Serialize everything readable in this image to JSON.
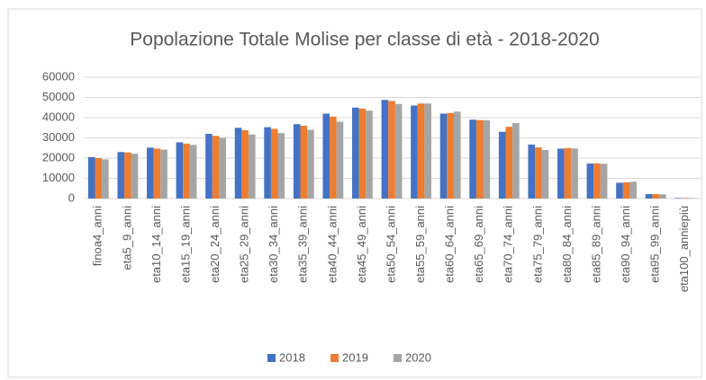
{
  "chart_data": {
    "type": "bar",
    "title": "Popolazione Totale Molise per classe di età - 2018-2020",
    "categories": [
      "finoa4_anni",
      "eta5_9_anni",
      "eta10_14_anni",
      "eta15_19_anni",
      "eta20_24_anni",
      "eta25_29_anni",
      "eta30_34_anni",
      "eta35_39_anni",
      "eta40_44_anni",
      "eta45_49_anni",
      "eta50_54_anni",
      "eta55_59_anni",
      "eta60_64_anni",
      "eta65_69_anni",
      "eta70_74_anni",
      "eta75_79_anni",
      "eta80_84_anni",
      "eta85_89_anni",
      "eta90_94_anni",
      "eta95_99_anni",
      "eta100_anniepiù"
    ],
    "series": [
      {
        "name": "2018",
        "color": "#4472c4",
        "values": [
          20500,
          23000,
          25200,
          27800,
          32000,
          35000,
          35300,
          36800,
          42000,
          45000,
          48800,
          46000,
          42000,
          39000,
          33000,
          26700,
          24700,
          17300,
          7800,
          2200,
          300
        ]
      },
      {
        "name": "2019",
        "color": "#ed7d31",
        "values": [
          20000,
          22800,
          24700,
          27200,
          31000,
          33800,
          34500,
          36000,
          40500,
          44500,
          48300,
          47000,
          42300,
          38800,
          35500,
          25300,
          25000,
          17400,
          8000,
          2200,
          300
        ]
      },
      {
        "name": "2020",
        "color": "#a5a5a5",
        "values": [
          19400,
          22200,
          24200,
          26500,
          30000,
          31700,
          32400,
          34000,
          38000,
          43500,
          46800,
          47000,
          43000,
          38700,
          37300,
          24000,
          24800,
          17200,
          8300,
          2100,
          300
        ]
      }
    ],
    "ylim": [
      0,
      60000
    ],
    "yticks": [
      0,
      10000,
      20000,
      30000,
      40000,
      50000,
      60000
    ],
    "grid": true,
    "legend": "bottom"
  }
}
